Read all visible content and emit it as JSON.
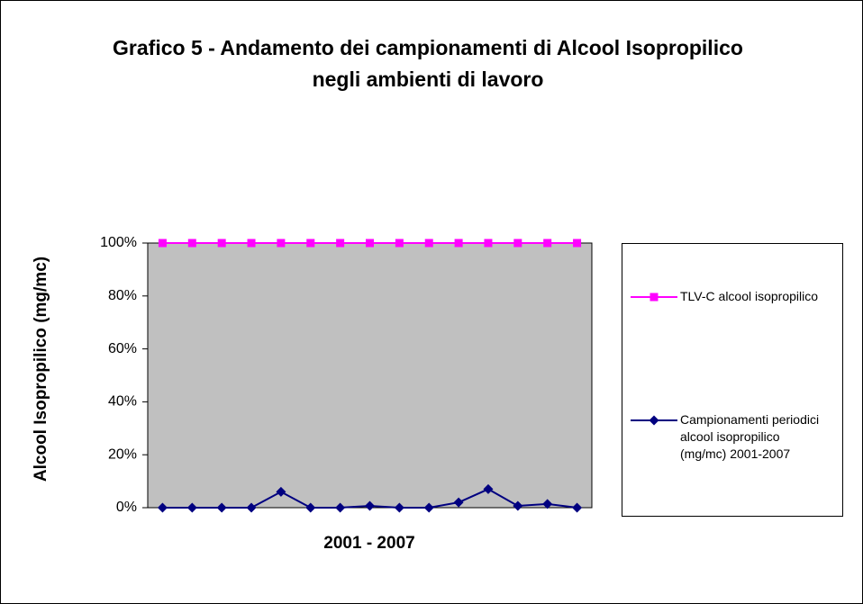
{
  "chart_data": {
    "type": "line",
    "title": "Grafico 5 - Andamento dei campionamenti di Alcool Isopropilico negli ambienti di lavoro",
    "x_label": "2001 - 2007",
    "y_label": "Alcool Isopropilico (mg/mc)",
    "categories": [
      null,
      null,
      null,
      null,
      null,
      null,
      null,
      null,
      null,
      null,
      null,
      null,
      null,
      null,
      null
    ],
    "series": [
      {
        "name": "TLV-C alcool isopropilico",
        "color": "#ff00ff",
        "marker": "square",
        "values": [
          100,
          100,
          100,
          100,
          100,
          100,
          100,
          100,
          100,
          100,
          100,
          100,
          100,
          100,
          100
        ]
      },
      {
        "name": "Campionamenti periodici alcool isopropilico (mg/mc) 2001-2007",
        "color": "#000080",
        "marker": "diamond",
        "values": [
          0,
          0,
          0,
          0,
          6,
          0,
          0,
          0.7,
          0,
          0,
          2,
          7,
          0.7,
          1.4,
          0
        ]
      }
    ],
    "ylim": [
      0,
      100
    ],
    "yticks": [
      {
        "value": 0,
        "label": "0%"
      },
      {
        "value": 20,
        "label": "20%"
      },
      {
        "value": 40,
        "label": "40%"
      },
      {
        "value": 60,
        "label": "60%"
      },
      {
        "value": 80,
        "label": "80%"
      },
      {
        "value": 100,
        "label": "100%"
      }
    ],
    "plot_background": "#c0c0c0",
    "legend": "right"
  }
}
